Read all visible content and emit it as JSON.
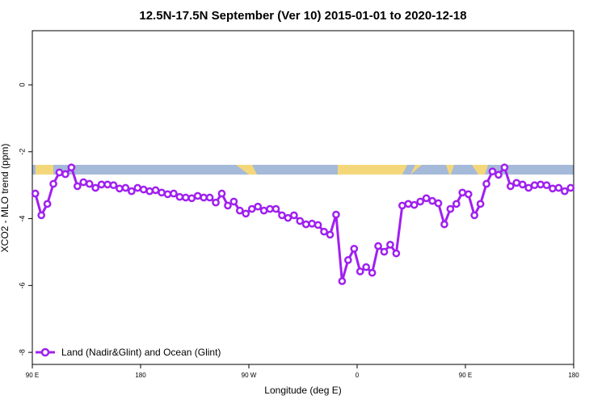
{
  "chart_data": {
    "type": "line",
    "title": "12.5N-17.5N September (Ver 10)   2015-01-01 to 2020-12-18",
    "xlabel": "Longitude (deg E)",
    "ylabel": "XCO2 - MLO trend (ppm)",
    "xlim": [
      90,
      540
    ],
    "ylim": [
      -8.36,
      1.62
    ],
    "xticks": [
      {
        "value": 90,
        "label": "90 E"
      },
      180,
      {
        "value": 270,
        "label": "90 W"
      },
      {
        "value": 360,
        "label": "0"
      },
      {
        "value": 450,
        "label": "90 E"
      },
      {
        "value": 540,
        "label": "180"
      }
    ],
    "yticks": [
      0,
      -2,
      -4,
      -6,
      -8
    ],
    "legend": "bottom-left",
    "x": [
      92.5,
      97.5,
      102.5,
      107.5,
      112.5,
      117.5,
      122.5,
      127.5,
      132.5,
      137.5,
      142.5,
      147.5,
      152.5,
      157.5,
      162.5,
      167.5,
      172.5,
      177.5,
      182.5,
      187.5,
      192.5,
      197.5,
      202.5,
      207.5,
      212.5,
      217.5,
      222.5,
      227.5,
      232.5,
      237.5,
      242.5,
      247.5,
      252.5,
      257.5,
      262.5,
      267.5,
      272.5,
      277.5,
      282.5,
      287.5,
      292.5,
      297.5,
      302.5,
      307.5,
      312.5,
      317.5,
      322.5,
      327.5,
      332.5,
      337.5,
      342.5,
      347.5,
      352.5,
      357.5,
      362.5,
      367.5,
      372.5,
      377.5,
      382.5,
      387.5,
      392.5,
      397.5,
      402.5,
      407.5,
      412.5,
      417.5,
      422.5,
      427.5,
      432.5,
      437.5,
      442.5,
      447.5,
      452.5,
      457.5,
      462.5,
      467.5,
      472.5,
      477.5,
      482.5,
      487.5,
      492.5,
      497.5,
      502.5,
      507.5,
      512.5,
      517.5,
      522.5,
      527.5,
      532.5,
      537.5
    ],
    "series": [
      {
        "name": "Land (Nadir&Glint) and Ocean (Glint)",
        "color": "#a020f0",
        "values": [
          -3.25,
          -3.9,
          -3.56,
          -2.96,
          -2.62,
          -2.67,
          -2.47,
          -3.03,
          -2.91,
          -2.96,
          -3.08,
          -2.98,
          -2.98,
          -3.0,
          -3.1,
          -3.08,
          -3.18,
          -3.08,
          -3.13,
          -3.18,
          -3.15,
          -3.22,
          -3.27,
          -3.25,
          -3.35,
          -3.37,
          -3.39,
          -3.32,
          -3.37,
          -3.37,
          -3.52,
          -3.25,
          -3.61,
          -3.49,
          -3.76,
          -3.85,
          -3.71,
          -3.64,
          -3.76,
          -3.71,
          -3.71,
          -3.9,
          -3.98,
          -3.9,
          -4.07,
          -4.17,
          -4.15,
          -4.19,
          -4.39,
          -4.48,
          -3.88,
          -5.87,
          -5.24,
          -4.9,
          -5.58,
          -5.45,
          -5.62,
          -4.82,
          -4.99,
          -4.78,
          -5.04,
          -3.61,
          -3.56,
          -3.59,
          -3.49,
          -3.39,
          -3.47,
          -3.54,
          -4.17,
          -3.71,
          -3.56,
          -3.22,
          -3.27,
          -3.9,
          -3.56,
          -2.96,
          -2.59,
          -2.69,
          -2.47,
          -3.03,
          -2.93,
          -2.98,
          -3.08,
          -3.0,
          -2.98,
          -3.0,
          -3.1,
          -3.08,
          -3.18,
          -3.08
        ]
      }
    ]
  }
}
